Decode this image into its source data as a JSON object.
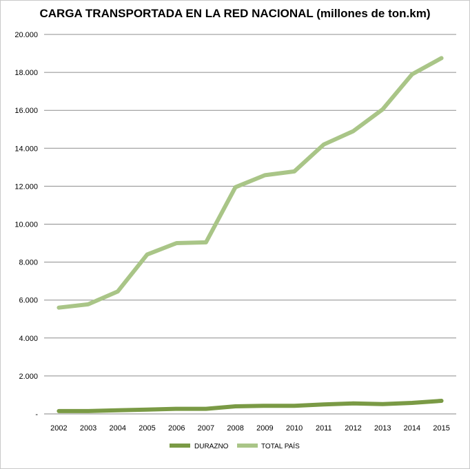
{
  "chart_data": {
    "type": "line",
    "title": "CARGA TRANSPORTADA EN LA RED NACIONAL (millones de ton.km)",
    "xlabel": "",
    "ylabel": "",
    "categories": [
      "2002",
      "2003",
      "2004",
      "2005",
      "2006",
      "2007",
      "2008",
      "2009",
      "2010",
      "2011",
      "2012",
      "2013",
      "2014",
      "2015"
    ],
    "ylim": [
      0,
      20000
    ],
    "y_ticks": [
      0,
      2000,
      4000,
      6000,
      8000,
      10000,
      12000,
      14000,
      16000,
      18000,
      20000
    ],
    "y_tick_labels": [
      "-",
      "2.000",
      "4.000",
      "6.000",
      "8.000",
      "10.000",
      "12.000",
      "14.000",
      "16.000",
      "18.000",
      "20.000"
    ],
    "grid": true,
    "legend_position": "bottom",
    "series": [
      {
        "name": "DURAZNO",
        "color": "#7a9a45",
        "values": [
          150,
          150,
          190,
          230,
          270,
          270,
          400,
          430,
          430,
          500,
          550,
          520,
          580,
          690
        ]
      },
      {
        "name": "TOTAL PAÍS",
        "color": "#a9c587",
        "values": [
          5600,
          5780,
          6450,
          8400,
          9000,
          9040,
          11950,
          12580,
          12780,
          14200,
          14900,
          16050,
          17900,
          18750
        ]
      }
    ]
  }
}
